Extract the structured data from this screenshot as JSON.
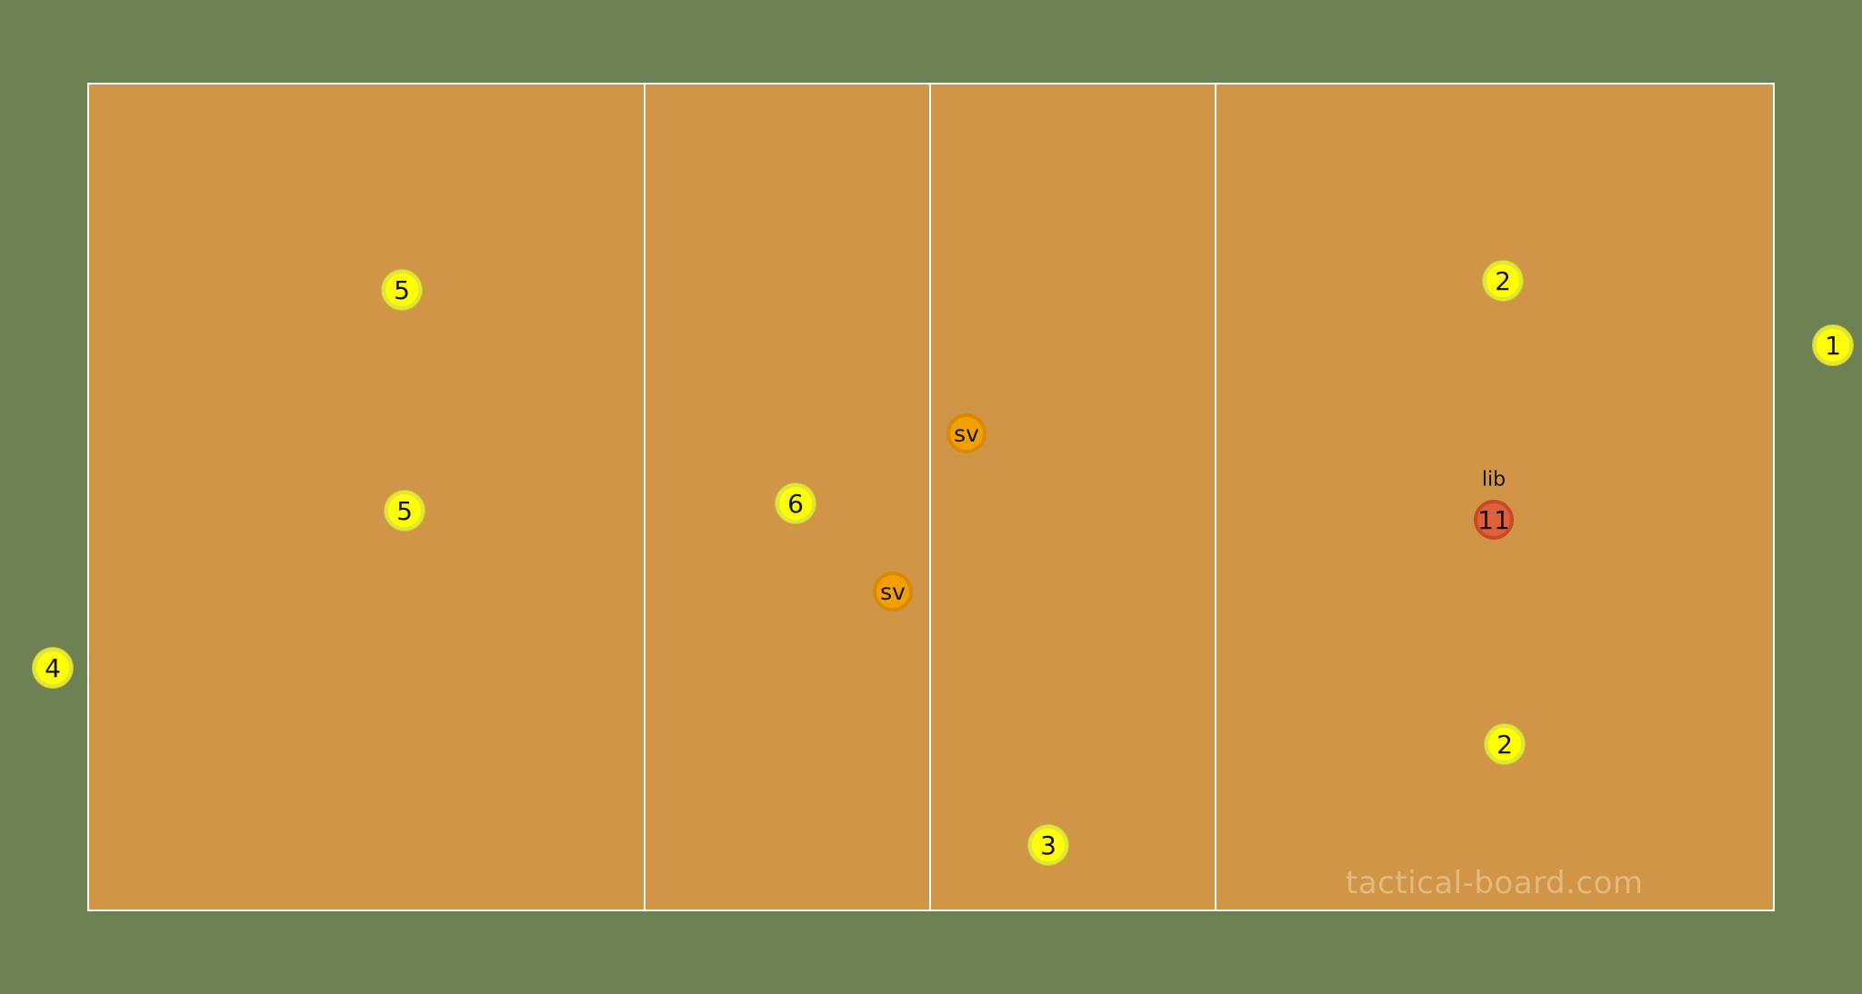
{
  "board": {
    "colors": {
      "pitch": "#6e8153",
      "court": "#d09546",
      "lines": "#ffffff",
      "player_yellow": "#ffff00",
      "player_orange": "#f2a000",
      "player_red": "#e0603a"
    },
    "players": [
      {
        "id": "p5a",
        "label": "5",
        "color": "yellow"
      },
      {
        "id": "p5b",
        "label": "5",
        "color": "yellow"
      },
      {
        "id": "p6",
        "label": "6",
        "color": "yellow"
      },
      {
        "id": "sv-left",
        "label": "sv",
        "color": "orange"
      },
      {
        "id": "sv-right",
        "label": "sv",
        "color": "orange"
      },
      {
        "id": "p3",
        "label": "3",
        "color": "yellow"
      },
      {
        "id": "p2a",
        "label": "2",
        "color": "yellow"
      },
      {
        "id": "p2b",
        "label": "2",
        "color": "yellow"
      },
      {
        "id": "p11",
        "label": "11",
        "color": "red"
      },
      {
        "id": "p1",
        "label": "1",
        "color": "yellow"
      },
      {
        "id": "p4",
        "label": "4",
        "color": "yellow"
      }
    ],
    "libero_tag": "lib",
    "watermark": "tactical-board.com"
  }
}
